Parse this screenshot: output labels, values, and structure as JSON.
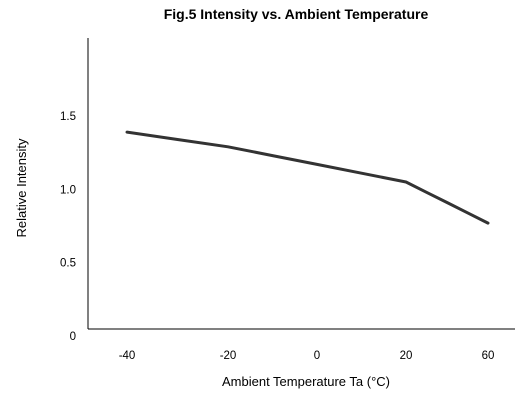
{
  "chart_data": {
    "type": "line",
    "title": "Fig.5 Intensity vs. Ambient Temperature",
    "xlabel": "Ambient Temperature Ta (°C)",
    "ylabel": "Relative Intensity",
    "x_ticks": [
      -40,
      -20,
      0,
      20,
      60
    ],
    "x_tick_labels": [
      "-40",
      "-20",
      "0",
      "20",
      "60"
    ],
    "y_ticks": [
      0,
      0.5,
      1.0,
      1.5
    ],
    "y_tick_labels": [
      "0",
      "0.5",
      "1.0",
      "1.5"
    ],
    "grid": false,
    "series": [
      {
        "x": [
          -40,
          -30,
          -20,
          -10,
          0,
          10,
          20,
          30,
          40,
          50,
          60
        ],
        "y": [
          1.39,
          1.34,
          1.29,
          1.23,
          1.17,
          1.11,
          1.05,
          0.98,
          0.91,
          0.84,
          0.77
        ]
      }
    ],
    "colors": {
      "line": "#333333",
      "axis": "#000000",
      "text": "#000000"
    }
  }
}
